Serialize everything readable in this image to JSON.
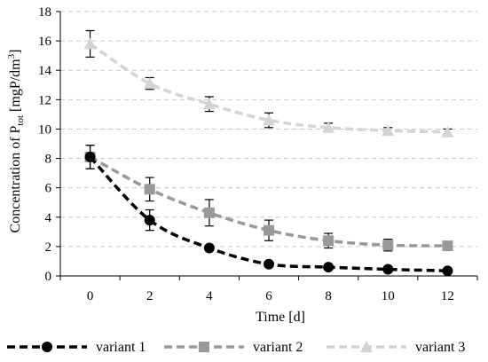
{
  "chart_data": {
    "type": "line",
    "xlabel": "Time [d]",
    "ylabel": {
      "prefix": "Concentration of P",
      "subscript": "tot",
      "suffix": " [mgP/dm",
      "superscript": "3",
      "close": "]"
    },
    "x": [
      0,
      2,
      4,
      6,
      8,
      10,
      12
    ],
    "xlim": [
      -1,
      13
    ],
    "ylim": [
      0,
      18
    ],
    "x_ticks": [
      "0",
      "2",
      "4",
      "6",
      "8",
      "10",
      "12"
    ],
    "y_ticks": [
      "0",
      "2",
      "4",
      "6",
      "8",
      "10",
      "12",
      "14",
      "16",
      "18"
    ],
    "grid": true,
    "legend_position": "bottom",
    "series": [
      {
        "name": "variant 1",
        "color": "#000000",
        "marker": "circle",
        "values": [
          8.1,
          3.8,
          1.9,
          0.8,
          0.6,
          0.45,
          0.35
        ],
        "errors": [
          0.8,
          0.7,
          0.0,
          0.0,
          0.0,
          0.0,
          0.0
        ]
      },
      {
        "name": "variant 2",
        "color": "#999999",
        "marker": "square",
        "values": [
          8.1,
          5.9,
          4.3,
          3.1,
          2.4,
          2.1,
          2.05
        ],
        "errors": [
          0.8,
          0.8,
          0.9,
          0.7,
          0.5,
          0.4,
          0.0
        ]
      },
      {
        "name": "variant 3",
        "color": "#d4d4d4",
        "marker": "triangle",
        "values": [
          15.8,
          13.1,
          11.7,
          10.6,
          10.1,
          9.9,
          9.8
        ],
        "errors": [
          0.9,
          0.4,
          0.5,
          0.5,
          0.3,
          0.2,
          0.2
        ]
      }
    ]
  }
}
